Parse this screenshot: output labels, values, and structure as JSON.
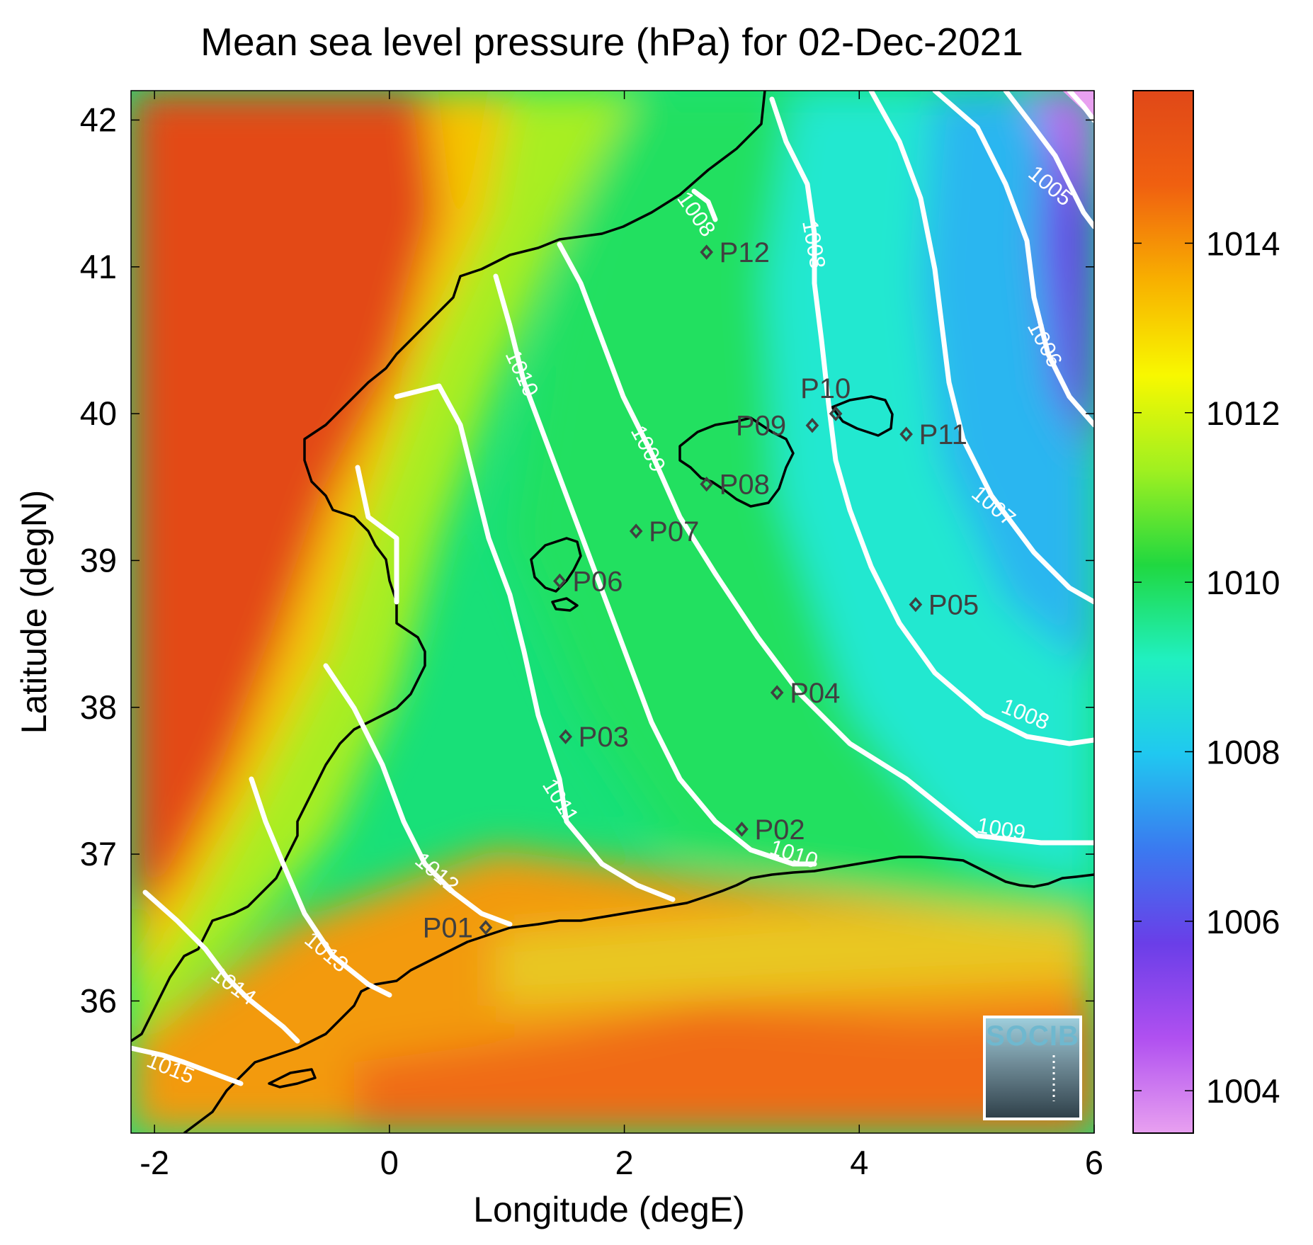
{
  "title": "Mean sea level pressure (hPa) for 02-Dec-2021",
  "axes": {
    "xlabel": "Longitude (degE)",
    "ylabel": "Latitude (degN)",
    "xlim": [
      -2.2,
      6.0
    ],
    "ylim": [
      35.1,
      42.2
    ],
    "xticks": [
      {
        "v": -2,
        "t": "-2"
      },
      {
        "v": 0,
        "t": "0"
      },
      {
        "v": 2,
        "t": "2"
      },
      {
        "v": 4,
        "t": "4"
      },
      {
        "v": 6,
        "t": "6"
      }
    ],
    "yticks": [
      {
        "v": 36,
        "t": "36"
      },
      {
        "v": 37,
        "t": "37"
      },
      {
        "v": 38,
        "t": "38"
      },
      {
        "v": 39,
        "t": "39"
      },
      {
        "v": 40,
        "t": "40"
      },
      {
        "v": 41,
        "t": "41"
      },
      {
        "v": 42,
        "t": "42"
      }
    ]
  },
  "colorbar": {
    "range": [
      1003.5,
      1015.8
    ],
    "ticks": [
      {
        "v": 1004,
        "t": "1004"
      },
      {
        "v": 1006,
        "t": "1006"
      },
      {
        "v": 1008,
        "t": "1008"
      },
      {
        "v": 1010,
        "t": "1010"
      },
      {
        "v": 1012,
        "t": "1012"
      },
      {
        "v": 1014,
        "t": "1014"
      }
    ],
    "colormap": [
      "#e8a0f0",
      "#b050f0",
      "#6a3ee8",
      "#3a7af0",
      "#20c8f0",
      "#20f0c0",
      "#20d840",
      "#a0f020",
      "#f8f800",
      "#f8b000",
      "#f06010",
      "#e04818"
    ]
  },
  "contours": [
    {
      "level": 1015,
      "label": "1015"
    },
    {
      "level": 1014,
      "label": "1014"
    },
    {
      "level": 1013,
      "label": "1013"
    },
    {
      "level": 1012,
      "label": "1012"
    },
    {
      "level": 1011,
      "label": "1011"
    },
    {
      "level": 1010,
      "label": "1010"
    },
    {
      "level": 1009,
      "label": "1009"
    },
    {
      "level": 1008,
      "label": "1008"
    },
    {
      "level": 1007,
      "label": "1007"
    },
    {
      "level": 1006,
      "label": "1006"
    },
    {
      "level": 1005,
      "label": "1005"
    }
  ],
  "stations": [
    {
      "id": "P01",
      "lon": 0.82,
      "lat": 36.5
    },
    {
      "id": "P02",
      "lon": 3.0,
      "lat": 37.17
    },
    {
      "id": "P03",
      "lon": 1.5,
      "lat": 37.8
    },
    {
      "id": "P04",
      "lon": 3.3,
      "lat": 38.1
    },
    {
      "id": "P05",
      "lon": 4.48,
      "lat": 38.7
    },
    {
      "id": "P06",
      "lon": 1.45,
      "lat": 38.86
    },
    {
      "id": "P07",
      "lon": 2.1,
      "lat": 39.2
    },
    {
      "id": "P08",
      "lon": 2.7,
      "lat": 39.52
    },
    {
      "id": "P09",
      "lon": 3.6,
      "lat": 39.92
    },
    {
      "id": "P10",
      "lon": 3.8,
      "lat": 40.0
    },
    {
      "id": "P11",
      "lon": 4.4,
      "lat": 39.86
    },
    {
      "id": "P12",
      "lon": 2.7,
      "lat": 41.1
    }
  ],
  "logo": {
    "text": "SOCIB"
  }
}
